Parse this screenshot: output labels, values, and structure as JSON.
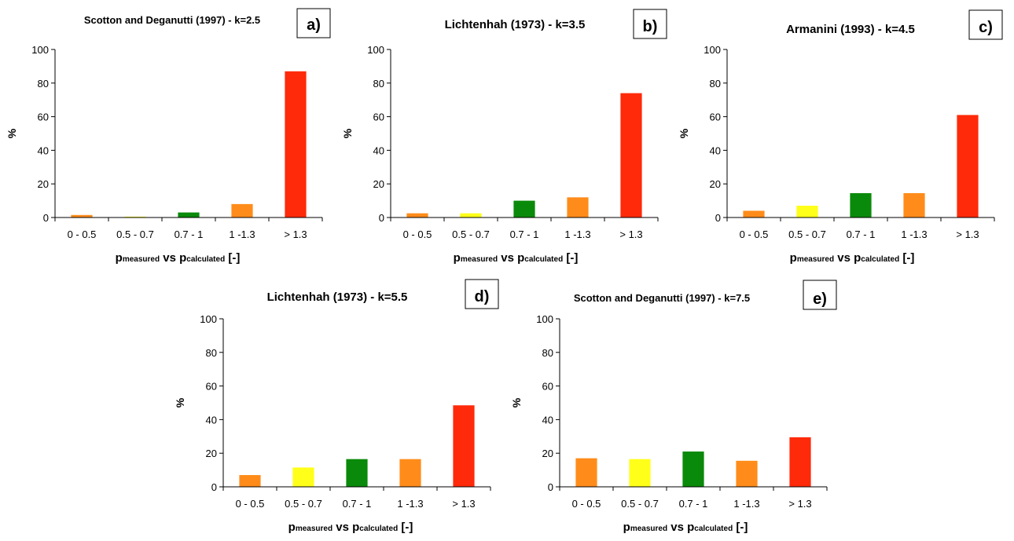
{
  "chart_data": [
    {
      "type": "bar",
      "title": "Scotton and Deganutti (1997) - k=2.5",
      "panel_label": "a)",
      "ylabel": "%",
      "xlabel": {
        "p1": "p",
        "sub1": "measured",
        "vs": " vs ",
        "p2": "p",
        "sub2": "calculated",
        "unit": " [-]"
      },
      "categories": [
        "0 - 0.5",
        "0.5 - 0.7",
        "0.7 - 1",
        "1 -1.3",
        "> 1.3"
      ],
      "values": [
        1.5,
        0.5,
        3,
        8,
        87
      ],
      "yticks": [
        "0",
        "20",
        "40",
        "60",
        "80",
        "100"
      ],
      "ylim": [
        0,
        100
      ]
    },
    {
      "type": "bar",
      "title": "Lichtenhah (1973) - k=3.5",
      "panel_label": "b)",
      "ylabel": "%",
      "xlabel": {
        "p1": "p",
        "sub1": "measured",
        "vs": " vs ",
        "p2": "p",
        "sub2": "calculated",
        "unit": " [-]"
      },
      "categories": [
        "0 - 0.5",
        "0.5 - 0.7",
        "0.7 - 1",
        "1 -1.3",
        "> 1.3"
      ],
      "values": [
        2.5,
        2.5,
        10,
        12,
        74
      ],
      "yticks": [
        "0",
        "20",
        "40",
        "60",
        "80",
        "100"
      ],
      "ylim": [
        0,
        100
      ]
    },
    {
      "type": "bar",
      "title": "Armanini (1993) - k=4.5",
      "panel_label": "c)",
      "ylabel": "%",
      "xlabel": {
        "p1": "p",
        "sub1": "measured",
        "vs": " vs ",
        "p2": "p",
        "sub2": "calculated",
        "unit": " [-]"
      },
      "categories": [
        "0 - 0.5",
        "0.5 - 0.7",
        "0.7 - 1",
        "1 -1.3",
        "> 1.3"
      ],
      "values": [
        4,
        7,
        14.5,
        14.5,
        61
      ],
      "yticks": [
        "0",
        "20",
        "40",
        "60",
        "80",
        "100"
      ],
      "ylim": [
        0,
        100
      ]
    },
    {
      "type": "bar",
      "title": "Lichtenhah (1973) - k=5.5",
      "panel_label": "d)",
      "ylabel": "%",
      "xlabel": {
        "p1": "p",
        "sub1": "measured",
        "vs": " vs ",
        "p2": "p",
        "sub2": "calculated",
        "unit": " [-]"
      },
      "categories": [
        "0 - 0.5",
        "0.5 - 0.7",
        "0.7 - 1",
        "1 -1.3",
        "> 1.3"
      ],
      "values": [
        7,
        11.5,
        16.5,
        16.5,
        48.5
      ],
      "yticks": [
        "0",
        "20",
        "40",
        "60",
        "80",
        "100"
      ],
      "ylim": [
        0,
        100
      ]
    },
    {
      "type": "bar",
      "title": "Scotton and Deganutti (1997) - k=7.5",
      "panel_label": "e)",
      "ylabel": "%",
      "xlabel": {
        "p1": "p",
        "sub1": "measured",
        "vs": " vs ",
        "p2": "p",
        "sub2": "calculated",
        "unit": " [-]"
      },
      "categories": [
        "0 - 0.5",
        "0.5 - 0.7",
        "0.7 - 1",
        "1 -1.3",
        "> 1.3"
      ],
      "values": [
        17,
        16.5,
        21,
        15.5,
        29.5
      ],
      "yticks": [
        "0",
        "20",
        "40",
        "60",
        "80",
        "100"
      ],
      "ylim": [
        0,
        100
      ]
    }
  ],
  "colors": {
    "bars": [
      "#FF8C1A",
      "#FFFF1A",
      "#0A8A0A",
      "#FF8C1A",
      "#FF2A0A"
    ],
    "axis": "#000000",
    "background": "#FFFFFF"
  }
}
